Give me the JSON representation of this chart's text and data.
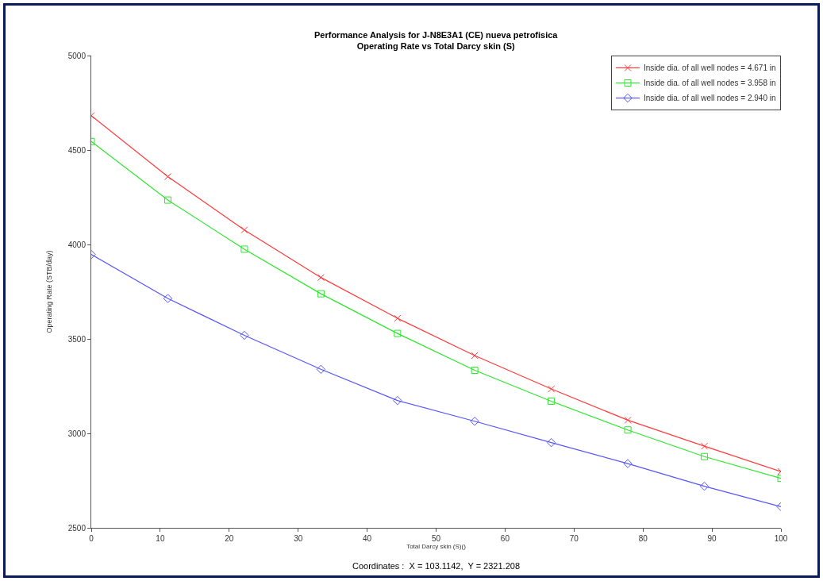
{
  "chart_data": {
    "type": "line",
    "title": "Performance Analysis for J-N8E3A1 (CE) nueva petrofisica",
    "subtitle": "Operating Rate vs Total Darcy skin (S)",
    "xlabel": "Total Darcy skin (S)()",
    "ylabel": "Operating Rate (STB/day)",
    "annotations": [
      "Coordinates :  X = 103.1142,  Y = 2321.208"
    ],
    "x": [
      0,
      11.1,
      22.2,
      33.3,
      44.4,
      55.6,
      66.7,
      77.8,
      88.9,
      100
    ],
    "series": [
      {
        "name": "Inside dia. of all well nodes = 4.671 in",
        "color": "#ff3b3b",
        "marker": "cross",
        "values": [
          4682,
          4359,
          4077,
          3825,
          3609,
          3412,
          3235,
          3070,
          2932,
          2798
        ]
      },
      {
        "name": "Inside dia. of all well nodes = 3.958 in",
        "color": "#2ee62e",
        "marker": "square",
        "values": [
          4545,
          4235,
          3975,
          3739,
          3529,
          3334,
          3170,
          3018,
          2877,
          2762
        ]
      },
      {
        "name": "Inside dia. of all well nodes = 2.940 in",
        "color": "#5555ff",
        "marker": "diamond",
        "values": [
          3947,
          3714,
          3519,
          3339,
          3174,
          3064,
          2951,
          2840,
          2720,
          2612
        ]
      }
    ],
    "xlim": [
      0,
      100
    ],
    "xticks": [
      0,
      10,
      20,
      30,
      40,
      50,
      60,
      70,
      80,
      90,
      100
    ],
    "ylim": [
      2500,
      5000
    ],
    "yticks": [
      2500,
      3000,
      3500,
      4000,
      4500,
      5000
    ],
    "grid": false,
    "legend": "top right",
    "line_style": "solid"
  }
}
